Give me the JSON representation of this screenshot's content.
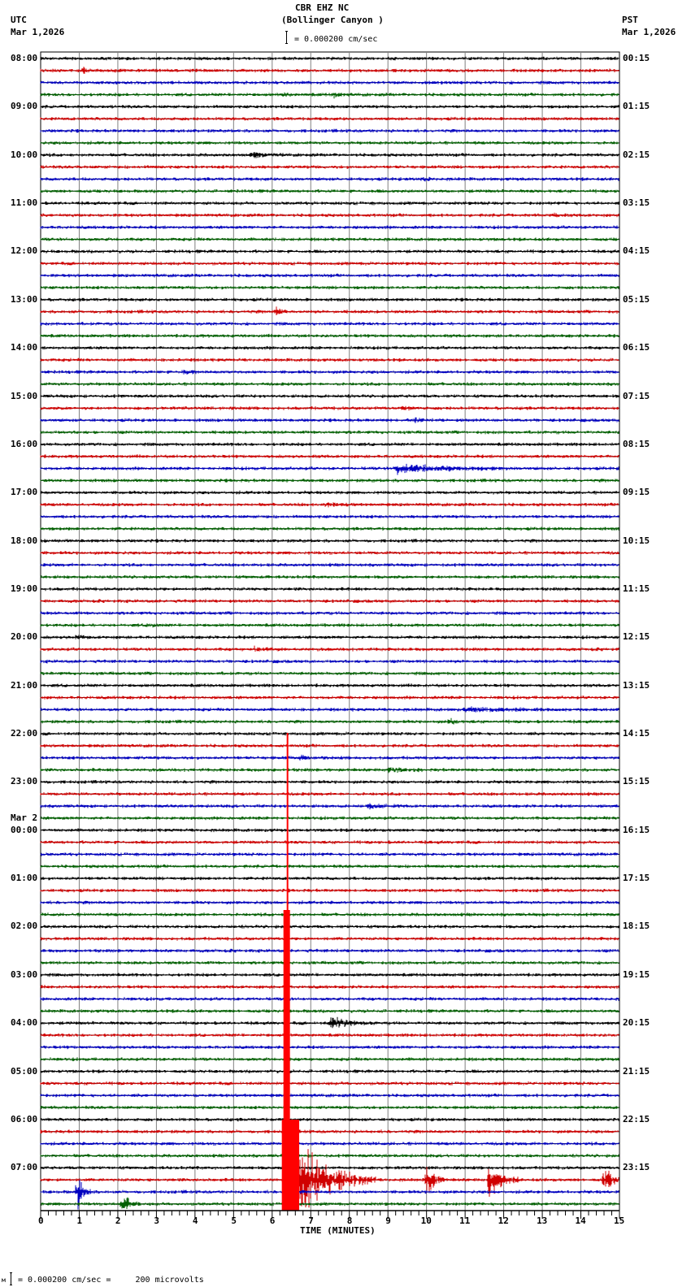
{
  "header": {
    "station": "CBR EHZ NC",
    "location": "(Bollinger Canyon )",
    "scale_text": "= 0.000200 cm/sec",
    "left_tz": "UTC",
    "left_date": "Mar 1,2026",
    "right_tz": "PST",
    "right_date": "Mar 1,2026"
  },
  "footer": {
    "scale_text": "= 0.000200 cm/sec =     200 microvolts",
    "glyph": "м"
  },
  "colors": {
    "trace_cycle": [
      "#000000",
      "#d00000",
      "#0000c0",
      "#006000"
    ],
    "grid": "#808080"
  },
  "chart_data": {
    "type": "line",
    "title": "CBR EHZ NC (Bollinger Canyon ) seismogram helicorder",
    "xlabel": "TIME (MINUTES)",
    "ylabel": "",
    "x_ticks": [
      "0",
      "1",
      "2",
      "3",
      "4",
      "5",
      "6",
      "7",
      "8",
      "9",
      "10",
      "11",
      "12",
      "13",
      "14",
      "15"
    ],
    "xlim": [
      0,
      15
    ],
    "traces_per_hour": 4,
    "minutes_per_trace": 15,
    "left_labels": [
      {
        "row": 0,
        "text": "08:00"
      },
      {
        "row": 4,
        "text": "09:00"
      },
      {
        "row": 8,
        "text": "10:00"
      },
      {
        "row": 12,
        "text": "11:00"
      },
      {
        "row": 16,
        "text": "12:00"
      },
      {
        "row": 20,
        "text": "13:00"
      },
      {
        "row": 24,
        "text": "14:00"
      },
      {
        "row": 28,
        "text": "15:00"
      },
      {
        "row": 32,
        "text": "16:00"
      },
      {
        "row": 36,
        "text": "17:00"
      },
      {
        "row": 40,
        "text": "18:00"
      },
      {
        "row": 44,
        "text": "19:00"
      },
      {
        "row": 48,
        "text": "20:00"
      },
      {
        "row": 52,
        "text": "21:00"
      },
      {
        "row": 56,
        "text": "22:00"
      },
      {
        "row": 60,
        "text": "23:00"
      },
      {
        "row": 64,
        "text": "00:00",
        "date": "Mar 2"
      },
      {
        "row": 68,
        "text": "01:00"
      },
      {
        "row": 72,
        "text": "02:00"
      },
      {
        "row": 76,
        "text": "03:00"
      },
      {
        "row": 80,
        "text": "04:00"
      },
      {
        "row": 84,
        "text": "05:00"
      },
      {
        "row": 88,
        "text": "06:00"
      },
      {
        "row": 92,
        "text": "07:00"
      }
    ],
    "right_labels": [
      "00:15",
      "01:15",
      "02:15",
      "03:15",
      "04:15",
      "05:15",
      "06:15",
      "07:15",
      "08:15",
      "09:15",
      "10:15",
      "11:15",
      "12:15",
      "13:15",
      "14:15",
      "15:15",
      "16:15",
      "17:15",
      "18:15",
      "19:15",
      "20:15",
      "21:15",
      "22:15",
      "23:15"
    ],
    "rows": 96,
    "events": [
      {
        "row": 1,
        "minute": 1.1,
        "amp": 5,
        "dur": 0.2
      },
      {
        "row": 3,
        "minute": 6.3,
        "amp": 4,
        "dur": 0.2
      },
      {
        "row": 3,
        "minute": 7.6,
        "amp": 5,
        "dur": 0.3
      },
      {
        "row": 8,
        "minute": 5.5,
        "amp": 4,
        "dur": 0.8
      },
      {
        "row": 10,
        "minute": 9.9,
        "amp": 4,
        "dur": 0.3
      },
      {
        "row": 13,
        "minute": 13.3,
        "amp": 3,
        "dur": 0.3
      },
      {
        "row": 21,
        "minute": 6.1,
        "amp": 8,
        "dur": 0.3
      },
      {
        "row": 26,
        "minute": 3.7,
        "amp": 4,
        "dur": 0.3
      },
      {
        "row": 29,
        "minute": 9.4,
        "amp": 4,
        "dur": 0.5
      },
      {
        "row": 30,
        "minute": 9.7,
        "amp": 4,
        "dur": 0.3
      },
      {
        "row": 34,
        "minute": 9.2,
        "amp": 7,
        "dur": 3.2
      },
      {
        "row": 37,
        "minute": 7.4,
        "amp": 3,
        "dur": 0.8
      },
      {
        "row": 47,
        "minute": 2.8,
        "amp": 3,
        "dur": 0.4
      },
      {
        "row": 48,
        "minute": 0.9,
        "amp": 3,
        "dur": 0.4
      },
      {
        "row": 49,
        "minute": 5.5,
        "amp": 3,
        "dur": 0.8
      },
      {
        "row": 55,
        "minute": 10.6,
        "amp": 5,
        "dur": 0.3
      },
      {
        "row": 54,
        "minute": 11.0,
        "amp": 3,
        "dur": 3.0
      },
      {
        "row": 58,
        "minute": 6.7,
        "amp": 3,
        "dur": 0.6
      },
      {
        "row": 59,
        "minute": 9.0,
        "amp": 3,
        "dur": 1.0
      },
      {
        "row": 62,
        "minute": 8.5,
        "amp": 4,
        "dur": 0.8
      },
      {
        "row": 80,
        "minute": 7.5,
        "amp": 10,
        "dur": 1.2
      },
      {
        "row": 93,
        "minute": 6.25,
        "amp": 380,
        "dur": 0.45,
        "big": true,
        "top_y": 902
      },
      {
        "row": 93,
        "minute": 6.7,
        "amp": 60,
        "dur": 2.0
      },
      {
        "row": 93,
        "minute": 10.0,
        "amp": 28,
        "dur": 0.5
      },
      {
        "row": 93,
        "minute": 11.6,
        "amp": 32,
        "dur": 0.8
      },
      {
        "row": 93,
        "minute": 14.6,
        "amp": 24,
        "dur": 0.5
      },
      {
        "row": 94,
        "minute": 0.95,
        "amp": 26,
        "dur": 0.4
      },
      {
        "row": 95,
        "minute": 2.1,
        "amp": 18,
        "dur": 0.5
      }
    ]
  }
}
